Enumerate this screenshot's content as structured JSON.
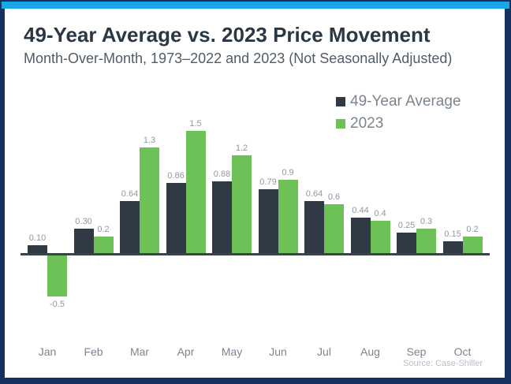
{
  "frame": {
    "border_color": "#15315f",
    "accent_bar_color": "#1aa7e5"
  },
  "header": {
    "title": "49-Year Average vs. 2023 Price Movement",
    "subtitle": "Month-Over-Month, 1973–2022 and 2023 (Not Seasonally Adjusted)"
  },
  "legend": [
    {
      "label": "49-Year Average",
      "color": "#303a45"
    },
    {
      "label": "2023",
      "color": "#6ec156"
    }
  ],
  "source": "Source: Case-Shiller",
  "chart_data": {
    "type": "bar",
    "title": "49-Year Average vs. 2023 Price Movement",
    "subtitle": "Month-Over-Month, 1973–2022 and 2023 (Not Seasonally Adjusted)",
    "xlabel": "",
    "ylabel": "",
    "categories": [
      "Jan",
      "Feb",
      "Mar",
      "Apr",
      "May",
      "Jun",
      "Jul",
      "Aug",
      "Sep",
      "Oct"
    ],
    "series": [
      {
        "name": "49-Year Average",
        "color": "#303a45",
        "values": [
          0.1,
          0.3,
          0.64,
          0.86,
          0.88,
          0.79,
          0.64,
          0.44,
          0.25,
          0.15
        ],
        "labels": [
          "0.10",
          "0.30",
          "0.64",
          "0.86",
          "0.88",
          "0.79",
          "0.64",
          "0.44",
          "0.25",
          "0.15"
        ]
      },
      {
        "name": "2023",
        "color": "#6ec156",
        "values": [
          -0.5,
          0.2,
          1.3,
          1.5,
          1.2,
          0.9,
          0.6,
          0.4,
          0.3,
          0.2
        ],
        "labels": [
          "-0.5",
          "0.2",
          "1.3",
          "1.5",
          "1.2",
          "0.9",
          "0.6",
          "0.4",
          "0.3",
          "0.2"
        ]
      }
    ],
    "ylim": [
      -0.7,
      1.7
    ],
    "grid": false,
    "legend_position": "top-right",
    "value_labels_shown": true
  }
}
